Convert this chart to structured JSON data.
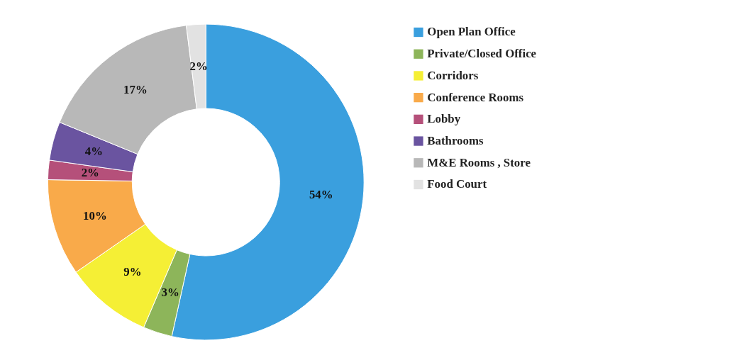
{
  "chart_data": {
    "type": "donut",
    "categories": [
      "Open Plan Office",
      "Private/Closed Office",
      "Corridors",
      "Conference Rooms",
      "Lobby",
      "Bathrooms",
      "M&E Rooms , Store",
      "Food Court"
    ],
    "values": [
      54,
      3,
      9,
      10,
      2,
      4,
      17,
      2
    ],
    "colors": [
      "#3a9fde",
      "#8db55a",
      "#f5ef35",
      "#f9aa4a",
      "#b5507a",
      "#6a54a0",
      "#b8b8b8",
      "#e2e2e2"
    ],
    "value_labels": [
      "54%",
      "3%",
      "9%",
      "10%",
      "2%",
      "4%",
      "17%",
      "2%"
    ],
    "legend": "right"
  }
}
